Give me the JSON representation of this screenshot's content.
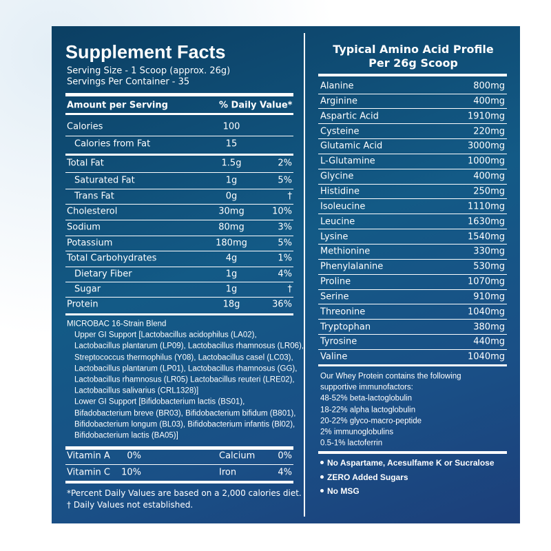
{
  "facts": {
    "title": "Supplement Facts",
    "serving": [
      "Serving  Size - 1 Scoop (approx. 26g)",
      "Servings Per Container - 35"
    ],
    "header": {
      "amount": "Amount per Serving",
      "dv": "% Daily Value*"
    },
    "rows": [
      {
        "name": "Calories",
        "amount": "100"
      },
      {
        "name": "Calories from Fat",
        "amount": "15"
      },
      {
        "name": "Total Fat",
        "amount": "1.5g",
        "dv": "2%"
      },
      {
        "name": "Saturated Fat",
        "amount": "1g",
        "dv": "5%"
      },
      {
        "name": "Trans Fat",
        "amount": "0g",
        "dv": "†"
      },
      {
        "name": "Cholesterol",
        "amount": "30mg",
        "dv": "10%"
      },
      {
        "name": "Sodium",
        "amount": "80mg",
        "dv": "3%"
      },
      {
        "name": "Potassium",
        "amount": "180mg",
        "dv": "5%"
      },
      {
        "name": "Total Carbohydrates",
        "amount": "4g",
        "dv": "1%"
      },
      {
        "name": "Dietary Fiber",
        "amount": "1g",
        "dv": "4%"
      },
      {
        "name": "Sugar",
        "amount": "1g",
        "dv": "†"
      },
      {
        "name": "Protein",
        "amount": "18g",
        "dv": "36%"
      }
    ],
    "blend": [
      "MICROBAC 16-Strain Blend",
      "Upper GI Support [Lactobacillus acidophilus (LA02),",
      "Lactobacillus plantarum (LP09), Lactobacillus rhamnosus (LR06),",
      "Streptococcus thermophilus (Y08), Lactobacillus casel (LC03),",
      "Lactobacillus plantarum (LP01),  Lactobacillus rhamnosus (GG),",
      "Lactobacillus rhamnosus (LR05) Lactobacillus reuteri (LRE02),",
      "Lactobacillus salivarius (CRL1328)]",
      "Lower GI Support [Bifidobacterium lactis (BS01),",
      "Bifadobacterium breve (BR03), Bifidobacterium bifidum (B801),",
      "Bifidobacterium longum (BL03), Bifidobacterium infantis (Bl02),",
      "Bifidobacterium lactis (BA05)]"
    ],
    "vitamins": [
      {
        "name": "Vitamin A",
        "dv": "0%",
        "name2": "Calcium",
        "dv2": "0%"
      },
      {
        "name": "Vitamin C",
        "dv": "10%",
        "name2": "Iron",
        "dv2": "4%"
      }
    ],
    "footnotes": [
      "*Percent Daily Values are based on a 2,000 calories diet.",
      "† Daily Values not established."
    ]
  },
  "amino": {
    "title": [
      "Typical Amino Acid Profile",
      "Per 26g Scoop"
    ],
    "rows": [
      {
        "name": "Alanine",
        "amount": "800mg"
      },
      {
        "name": "Arginine",
        "amount": "400mg"
      },
      {
        "name": "Aspartic Acid",
        "amount": "1910mg"
      },
      {
        "name": "Cysteine",
        "amount": "220mg"
      },
      {
        "name": "Glutamic Acid",
        "amount": "3000mg"
      },
      {
        "name": "L-Glutamine",
        "amount": "1000mg"
      },
      {
        "name": "Glycine",
        "amount": "400mg"
      },
      {
        "name": "Histidine",
        "amount": "250mg"
      },
      {
        "name": "Isoleucine",
        "amount": "1110mg"
      },
      {
        "name": "Leucine",
        "amount": "1630mg"
      },
      {
        "name": "Lysine",
        "amount": "1540mg"
      },
      {
        "name": "Methionine",
        "amount": "330mg"
      },
      {
        "name": "Phenylalanine",
        "amount": "530mg"
      },
      {
        "name": "Proline",
        "amount": "1070mg"
      },
      {
        "name": "Serine",
        "amount": "910mg"
      },
      {
        "name": "Threonine",
        "amount": "1040mg"
      },
      {
        "name": "Tryptophan",
        "amount": "380mg"
      },
      {
        "name": "Tyrosine",
        "amount": "440mg"
      },
      {
        "name": "Valine",
        "amount": "1040mg"
      }
    ],
    "immuno": [
      "Our Whey Protein contains the following",
      "supportive immunofactors:",
      "48-52% beta-lactoglobulin",
      "18-22% alpha lactoglobulin",
      "20-22% glyco-macro-peptide",
      "2% immunoglobulins",
      "0.5-1% lactoferrin"
    ],
    "bullets": [
      "No Aspartame, Acesulfame K or Sucralose",
      "ZERO Added Sugars",
      "No MSG"
    ]
  }
}
